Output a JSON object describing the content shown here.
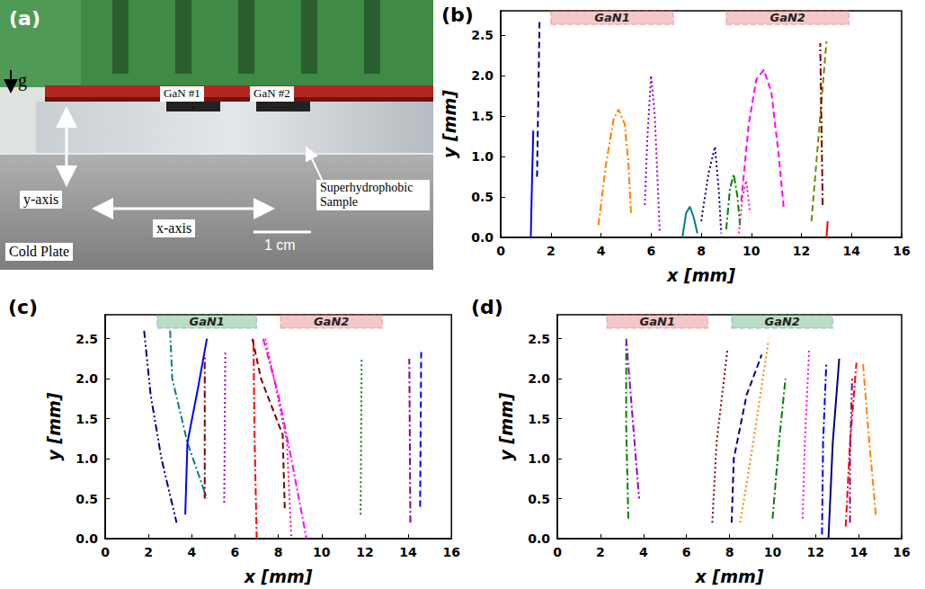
{
  "photo_panel": {
    "label": "(a)",
    "gravity": "g",
    "heater_labels": [
      "GaN #1",
      "GaN #2"
    ],
    "y_axis": "y-axis",
    "x_axis": "x-axis",
    "sample": "Superhydrophobic Sample",
    "plate": "Cold Plate",
    "scale": "1 cm"
  },
  "chart_data": [
    {
      "type": "line",
      "label": "(b)",
      "x_label": "x [mm]",
      "y_label": "y [mm]",
      "xlim": [
        0,
        16
      ],
      "xticks": [
        0,
        2,
        4,
        6,
        8,
        10,
        12,
        14,
        16
      ],
      "ylim": [
        0,
        2.8
      ],
      "yticks": [
        {
          "value": 0,
          "label": "0.0"
        },
        {
          "value": 0.5,
          "label": "0.5"
        },
        {
          "value": 1,
          "label": "1.0"
        },
        {
          "value": 1.5,
          "label": "1.5"
        },
        {
          "value": 2,
          "label": "2.0"
        },
        {
          "value": 2.5,
          "label": "2.5"
        }
      ],
      "grid": false,
      "heaters": [
        {
          "label": "GaN1",
          "xrange": [
            2.0,
            6.9
          ],
          "yrange": [
            2.63,
            2.8
          ],
          "color": "#e06060"
        },
        {
          "label": "GaN2",
          "xrange": [
            9.0,
            13.9
          ],
          "yrange": [
            2.63,
            2.8
          ],
          "color": "#e06060"
        }
      ],
      "series": [
        {
          "color": "#0000ff",
          "line_style": "solid",
          "x": [
            1.2,
            1.25,
            1.3
          ],
          "values": [
            0.0,
            0.7,
            1.32
          ]
        },
        {
          "color": "#000080",
          "line_style": "dashed",
          "x": [
            1.45,
            1.5,
            1.55
          ],
          "values": [
            0.75,
            1.7,
            2.7
          ]
        },
        {
          "color": "#ff8000",
          "line_style": "dashdot",
          "x": [
            3.9,
            4.2,
            4.5,
            4.7,
            4.95,
            5.1,
            5.2
          ],
          "values": [
            0.15,
            0.9,
            1.45,
            1.58,
            1.4,
            0.9,
            0.3
          ]
        },
        {
          "color": "#9400d3",
          "line_style": "dotted",
          "x": [
            5.75,
            5.85,
            6.0,
            6.15,
            6.35
          ],
          "values": [
            0.4,
            1.2,
            2.0,
            1.5,
            0.05
          ]
        },
        {
          "color": "#008080",
          "line_style": "solid",
          "x": [
            7.25,
            7.4,
            7.55,
            7.7,
            7.85
          ],
          "values": [
            0.0,
            0.3,
            0.38,
            0.25,
            0.05
          ]
        },
        {
          "color": "#000080",
          "line_style": "dotted",
          "x": [
            8.0,
            8.3,
            8.55,
            8.7,
            8.8
          ],
          "values": [
            0.2,
            0.8,
            1.12,
            0.6,
            0.05
          ]
        },
        {
          "color": "#008000",
          "line_style": "dashdot",
          "x": [
            9.0,
            9.15,
            9.3,
            9.45,
            9.55
          ],
          "values": [
            0.1,
            0.6,
            0.78,
            0.5,
            0.15
          ]
        },
        {
          "color": "#ff1493",
          "line_style": "dotted",
          "x": [
            9.5,
            9.65,
            9.8,
            9.95
          ],
          "values": [
            0.05,
            0.5,
            0.7,
            0.3
          ]
        },
        {
          "color": "#ff00ff",
          "line_style": "dashed",
          "x": [
            9.6,
            9.9,
            10.2,
            10.5,
            10.8,
            11.1,
            11.3
          ],
          "values": [
            0.45,
            1.4,
            1.95,
            2.07,
            1.8,
            1.0,
            0.35
          ]
        },
        {
          "color": "#808000",
          "line_style": "dashed",
          "x": [
            12.4,
            12.7,
            13.0
          ],
          "values": [
            0.2,
            1.3,
            2.42
          ]
        },
        {
          "color": "#800000",
          "line_style": "dashdot",
          "x": [
            12.85,
            12.8,
            12.75
          ],
          "values": [
            0.4,
            1.4,
            2.4
          ]
        },
        {
          "color": "#ff0000",
          "line_style": "solid",
          "x": [
            13.0,
            13.05
          ],
          "values": [
            0.0,
            0.2
          ]
        }
      ]
    },
    {
      "type": "line",
      "label": "(c)",
      "x_label": "x [mm]",
      "y_label": "y [mm]",
      "xlim": [
        0,
        16
      ],
      "xticks": [
        0,
        2,
        4,
        6,
        8,
        10,
        12,
        14,
        16
      ],
      "ylim": [
        0,
        2.8
      ],
      "yticks": [
        {
          "value": 0,
          "label": "0.0"
        },
        {
          "value": 0.5,
          "label": "0.5"
        },
        {
          "value": 1,
          "label": "1.0"
        },
        {
          "value": 1.5,
          "label": "1.5"
        },
        {
          "value": 2,
          "label": "2.0"
        },
        {
          "value": 2.5,
          "label": "2.5"
        }
      ],
      "grid": false,
      "heaters": [
        {
          "label": "GaN1",
          "xrange": [
            2.4,
            7.0
          ],
          "yrange": [
            2.63,
            2.8
          ],
          "color": "#3f9f5f"
        },
        {
          "label": "GaN2",
          "xrange": [
            8.1,
            12.8
          ],
          "yrange": [
            2.63,
            2.8
          ],
          "color": "#e06060"
        }
      ],
      "series": [
        {
          "color": "#000080",
          "line_style": "dashdotdot",
          "x": [
            1.8,
            2.1,
            2.6,
            3.3
          ],
          "values": [
            2.6,
            1.8,
            1.0,
            0.2
          ]
        },
        {
          "color": "#008080",
          "line_style": "dashdot",
          "x": [
            3.0,
            3.1,
            3.8,
            4.7
          ],
          "values": [
            2.6,
            2.0,
            1.2,
            0.5
          ]
        },
        {
          "color": "#0000ff",
          "line_style": "solid",
          "x": [
            3.7,
            3.8,
            4.3,
            4.7
          ],
          "values": [
            0.3,
            1.2,
            1.9,
            2.5
          ]
        },
        {
          "color": "#800000",
          "line_style": "dashdot",
          "x": [
            4.6,
            4.6
          ],
          "values": [
            0.5,
            2.3
          ]
        },
        {
          "color": "#9400d3",
          "line_style": "dotted",
          "x": [
            5.5,
            5.55
          ],
          "values": [
            0.45,
            2.35
          ]
        },
        {
          "color": "#ff0000",
          "line_style": "dashdot",
          "x": [
            7.0,
            6.9,
            6.85
          ],
          "values": [
            0.0,
            1.3,
            2.5
          ]
        },
        {
          "color": "#800000",
          "line_style": "dashed",
          "x": [
            6.8,
            7.2,
            8.2,
            8.3
          ],
          "values": [
            2.5,
            2.0,
            1.3,
            0.35
          ]
        },
        {
          "color": "#ff1493",
          "line_style": "dotted",
          "x": [
            7.4,
            7.8,
            8.4,
            8.6
          ],
          "values": [
            2.5,
            2.0,
            1.2,
            0.0
          ]
        },
        {
          "color": "#ff00ff",
          "line_style": "dashdot",
          "x": [
            7.3,
            8.0,
            8.6,
            9.3
          ],
          "values": [
            2.5,
            1.8,
            1.0,
            0.0
          ]
        },
        {
          "color": "#008000",
          "line_style": "dotted",
          "x": [
            11.8,
            11.85
          ],
          "values": [
            0.3,
            2.25
          ]
        },
        {
          "color": "#8b008b",
          "line_style": "dashdot",
          "x": [
            14.1,
            14.05
          ],
          "values": [
            0.2,
            2.25
          ]
        },
        {
          "color": "#0000ff",
          "line_style": "dashed",
          "x": [
            14.55,
            14.6
          ],
          "values": [
            0.4,
            2.35
          ]
        }
      ]
    },
    {
      "type": "line",
      "label": "(d)",
      "x_label": "x [mm]",
      "y_label": "y [mm]",
      "xlim": [
        0,
        16
      ],
      "xticks": [
        0,
        2,
        4,
        6,
        8,
        10,
        12,
        14,
        16
      ],
      "ylim": [
        0,
        2.8
      ],
      "yticks": [
        {
          "value": 0,
          "label": "0.0"
        },
        {
          "value": 0.5,
          "label": "0.5"
        },
        {
          "value": 1,
          "label": "1.0"
        },
        {
          "value": 1.5,
          "label": "1.5"
        },
        {
          "value": 2,
          "label": "2.0"
        },
        {
          "value": 2.5,
          "label": "2.5"
        }
      ],
      "grid": false,
      "heaters": [
        {
          "label": "GaN1",
          "xrange": [
            2.3,
            7.0
          ],
          "yrange": [
            2.63,
            2.8
          ],
          "color": "#e06060"
        },
        {
          "label": "GaN2",
          "xrange": [
            8.1,
            12.8
          ],
          "yrange": [
            2.63,
            2.8
          ],
          "color": "#3f9f5f"
        }
      ],
      "series": [
        {
          "color": "#008000",
          "line_style": "dashdot",
          "x": [
            3.3,
            3.2,
            3.2
          ],
          "values": [
            0.25,
            1.4,
            2.45
          ]
        },
        {
          "color": "#9400d3",
          "line_style": "dashdot",
          "x": [
            3.2,
            3.5,
            3.8
          ],
          "values": [
            2.5,
            1.5,
            0.5
          ]
        },
        {
          "color": "#800000",
          "line_style": "dotted",
          "x": [
            7.2,
            7.4,
            7.9
          ],
          "values": [
            0.2,
            1.2,
            2.35
          ]
        },
        {
          "color": "#000080",
          "line_style": "dashed",
          "x": [
            8.1,
            8.2,
            8.8,
            9.5
          ],
          "values": [
            0.2,
            1.0,
            1.8,
            2.3
          ]
        },
        {
          "color": "#ff8000",
          "line_style": "dotted",
          "x": [
            8.5,
            9.1,
            9.8
          ],
          "values": [
            0.2,
            1.2,
            2.45
          ]
        },
        {
          "color": "#008000",
          "line_style": "dashdot",
          "x": [
            10.0,
            10.3,
            10.6
          ],
          "values": [
            0.25,
            1.2,
            2.0
          ]
        },
        {
          "color": "#ff00ff",
          "line_style": "dotted",
          "x": [
            11.4,
            11.5,
            11.7
          ],
          "values": [
            0.25,
            1.2,
            2.35
          ]
        },
        {
          "color": "#0000ff",
          "line_style": "dashdot",
          "x": [
            12.3,
            12.35,
            12.5
          ],
          "values": [
            0.05,
            1.2,
            2.2
          ]
        },
        {
          "color": "#000080",
          "line_style": "solid",
          "x": [
            12.6,
            12.8,
            13.1
          ],
          "values": [
            0.0,
            1.2,
            2.25
          ]
        },
        {
          "color": "#ff0000",
          "line_style": "dashdot",
          "x": [
            13.4,
            13.6,
            13.9
          ],
          "values": [
            0.15,
            1.2,
            2.2
          ]
        },
        {
          "color": "#8b008b",
          "line_style": "dashdotdot",
          "x": [
            13.6,
            13.6,
            13.7
          ],
          "values": [
            0.2,
            1.0,
            2.0
          ]
        },
        {
          "color": "#ff8000",
          "line_style": "dashdot",
          "x": [
            14.8,
            14.5,
            14.2
          ],
          "values": [
            0.3,
            1.2,
            2.2
          ]
        }
      ]
    }
  ]
}
